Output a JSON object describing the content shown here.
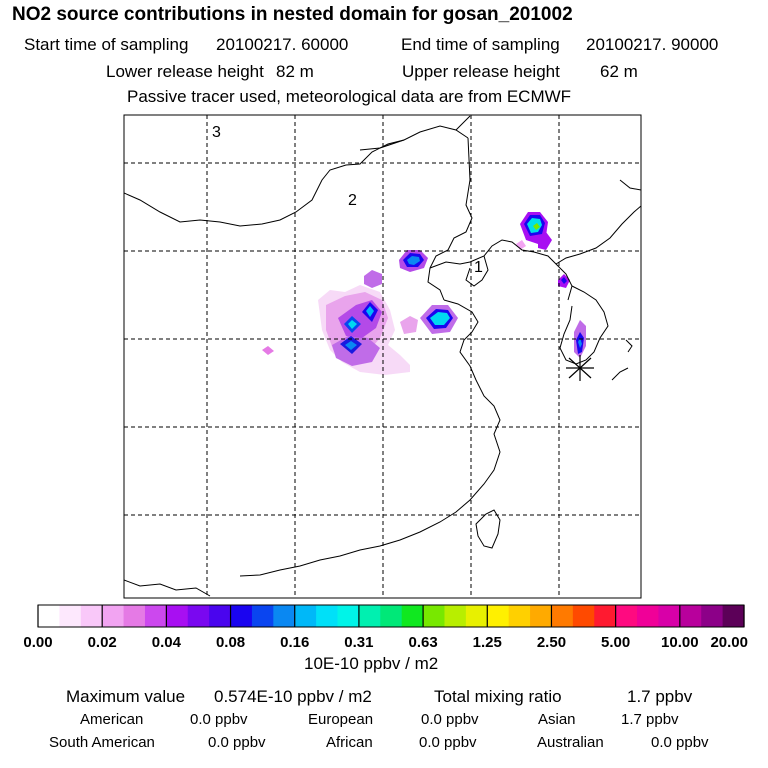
{
  "title": "NO2 source contributions in nested domain for gosan_201002",
  "sampling": {
    "start_label": "Start time of sampling",
    "start_value": "20100217. 60000",
    "end_label": "End time of sampling",
    "end_value": "20100217. 90000"
  },
  "release": {
    "lower_label": "Lower release height",
    "lower_value": "82 m",
    "upper_label": "Upper release height",
    "upper_value": "62 m"
  },
  "tracer_note": "Passive tracer used, meteorological data are from ECMWF",
  "map": {
    "region_labels": [
      "1",
      "2",
      "3"
    ],
    "receptor": "gosan-receptor-star"
  },
  "colorbar": {
    "ticks": [
      "0.00",
      "0.02",
      "0.04",
      "0.08",
      "0.16",
      "0.31",
      "0.63",
      "1.25",
      "2.50",
      "5.00",
      "10.00",
      "20.00"
    ],
    "unit": "10E-10 ppbv / m2",
    "colors": [
      "#ffffff",
      "#fde8fd",
      "#f9c8f9",
      "#f2a4f2",
      "#e57ae5",
      "#cc48ee",
      "#a80ff2",
      "#7a08f0",
      "#4a05ee",
      "#1a04f0",
      "#0a45f0",
      "#0a88f2",
      "#00b8f8",
      "#00e0f8",
      "#00f4e8",
      "#00f0b0",
      "#00e878",
      "#10e820",
      "#78e800",
      "#b8ee00",
      "#e8f000",
      "#fff000",
      "#ffd000",
      "#ffaa00",
      "#ff7a00",
      "#ff4a00",
      "#ff1a30",
      "#ff0a80",
      "#f00098",
      "#d800a8",
      "#b8009c",
      "#8c0088",
      "#5c0058"
    ]
  },
  "summary": {
    "max_label": "Maximum value",
    "max_value": "0.574E-10 ppbv / m2",
    "total_label": "Total mixing ratio",
    "total_value": "1.7 ppbv",
    "rows": [
      [
        {
          "name": "American",
          "value": "0.0 ppbv"
        },
        {
          "name": "European",
          "value": "0.0 ppbv"
        },
        {
          "name": "Asian",
          "value": "1.7 ppbv"
        }
      ],
      [
        {
          "name": "South American",
          "value": "0.0 ppbv"
        },
        {
          "name": "African",
          "value": "0.0 ppbv"
        },
        {
          "name": "Australian",
          "value": "0.0 ppbv"
        }
      ]
    ]
  }
}
